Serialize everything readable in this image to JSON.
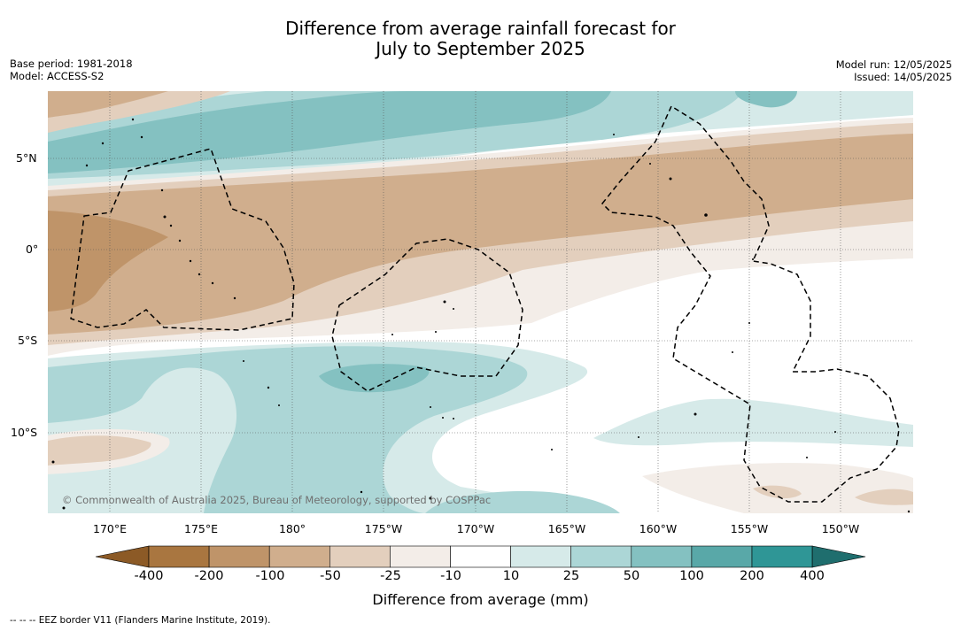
{
  "header": {
    "title_line1": "Difference from average rainfall forecast for",
    "title_line2": "July to September 2025",
    "base_period": "Base period: 1981-2018",
    "model": "Model: ACCESS-S2",
    "model_run": "Model run: 12/05/2025",
    "issued": "Issued: 14/05/2025"
  },
  "map": {
    "lat_labels": [
      "5°N",
      "0°",
      "5°S",
      "10°S"
    ],
    "lon_labels": [
      "170°E",
      "175°E",
      "180°",
      "175°W",
      "170°W",
      "165°W",
      "160°W",
      "155°W",
      "150°W"
    ],
    "copyright": "© Commonwealth of Australia 2025, Bureau of Meteorology, supported by COSPPac",
    "features": [
      "Kiribati EEZ boundaries (dashed)",
      "Pacific islands"
    ]
  },
  "legend": {
    "title": "Difference from average (mm)",
    "ticks": [
      "-400",
      "-200",
      "-100",
      "-50",
      "-25",
      "-10",
      "10",
      "25",
      "50",
      "100",
      "200",
      "400"
    ],
    "colors": [
      "#8c5a26",
      "#a97640",
      "#bf9469",
      "#d0ae8d",
      "#e3cfbd",
      "#f3ede8",
      "#ffffff",
      "#d6eae9",
      "#acd6d6",
      "#84c1c1",
      "#59a8a8",
      "#2f9696",
      "#1f6e6e"
    ]
  },
  "footnote": "--  --  -- EEZ border V11 (Flanders Marine Institute, 2019)."
}
